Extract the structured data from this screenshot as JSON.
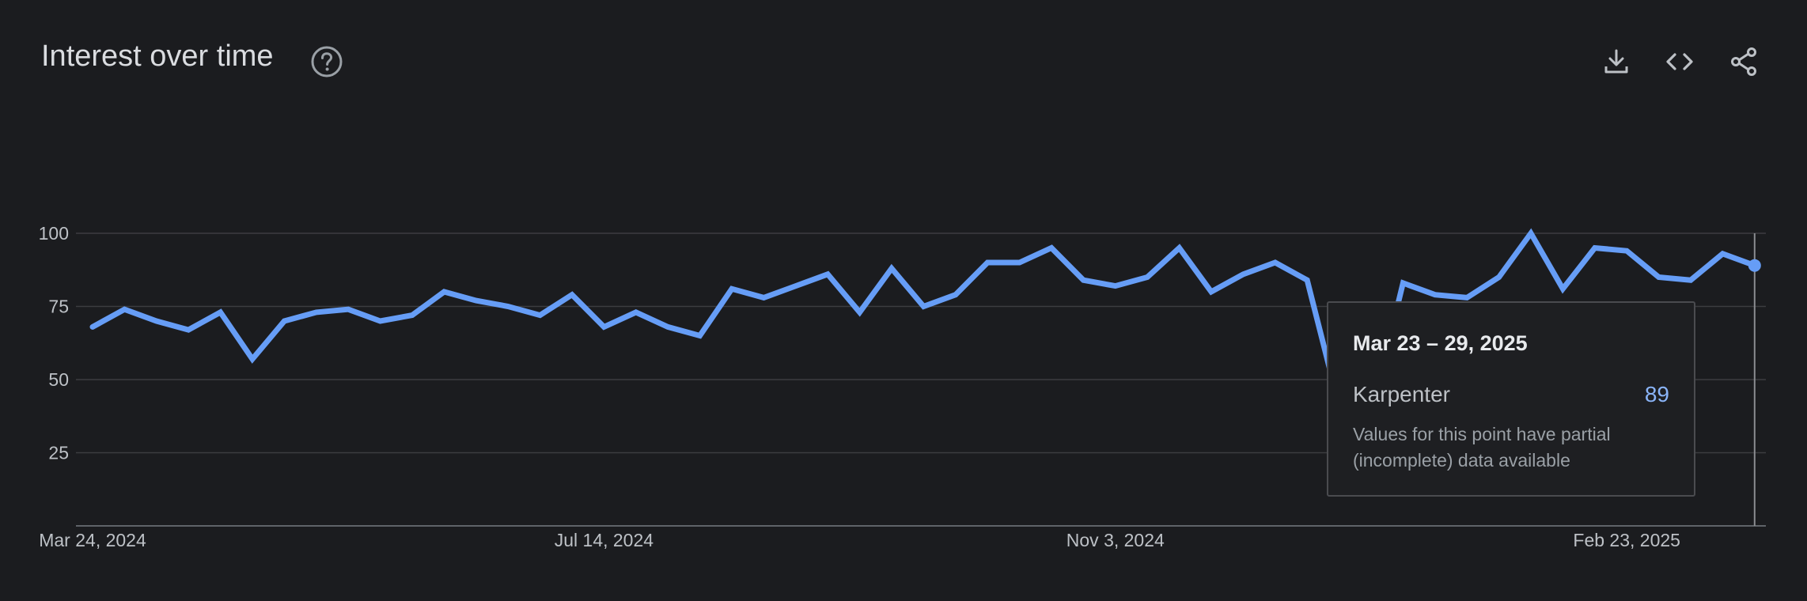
{
  "header": {
    "title": "Interest over time",
    "icons": [
      "help-icon",
      "download-icon",
      "embed-code-icon",
      "share-icon"
    ]
  },
  "colors": {
    "background": "#1b1c1f",
    "series_line": "#669df6",
    "grid": "#3c3d40",
    "text": "#bdc1c6",
    "tooltip_value": "#8ab4f8"
  },
  "tooltip": {
    "date": "Mar 23 – 29, 2025",
    "series": "Karpenter",
    "value": "89",
    "note": "Values for this point have partial (incomplete) data available"
  },
  "chart_data": {
    "type": "line",
    "title": "Interest over time",
    "xlabel": "",
    "ylabel": "",
    "ylim": [
      0,
      100
    ],
    "yticks": [
      25,
      50,
      75,
      100
    ],
    "xticks": [
      {
        "label": "Mar 24, 2024",
        "index": 0
      },
      {
        "label": "Jul 14, 2024",
        "index": 16
      },
      {
        "label": "Nov 3, 2024",
        "index": 32
      },
      {
        "label": "Feb 23, 2025",
        "index": 48
      }
    ],
    "grid": true,
    "legend": "none",
    "series": [
      {
        "name": "Karpenter",
        "x_start": "2024-03-24",
        "x_step": "1 week",
        "values": [
          68,
          74,
          70,
          67,
          73,
          57,
          70,
          73,
          74,
          70,
          72,
          80,
          77,
          75,
          72,
          79,
          68,
          73,
          68,
          65,
          81,
          78,
          82,
          86,
          73,
          88,
          75,
          79,
          90,
          90,
          95,
          84,
          82,
          85,
          95,
          80,
          86,
          90,
          84,
          41,
          38,
          83,
          79,
          78,
          85,
          100,
          81,
          95,
          94,
          85,
          84,
          93,
          89
        ]
      }
    ],
    "highlight_index": 52
  }
}
